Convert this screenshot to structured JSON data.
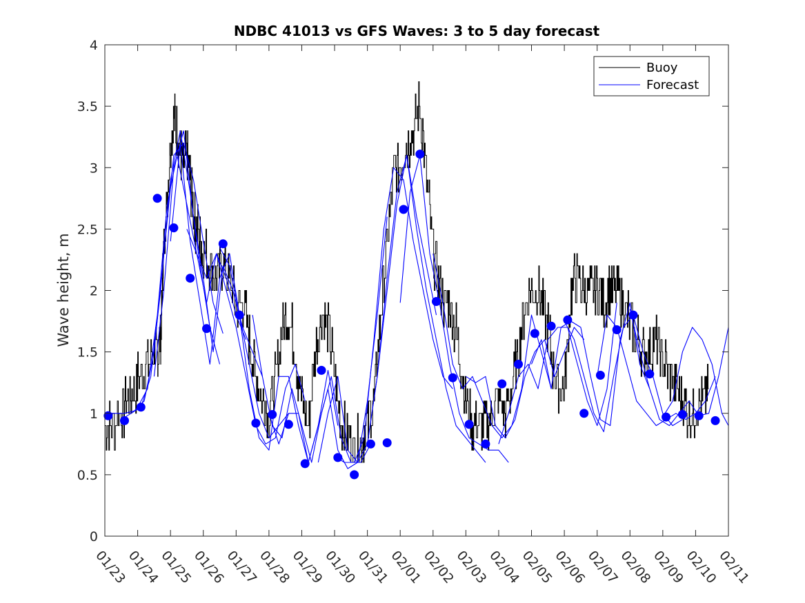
{
  "chart_data": {
    "type": "line",
    "title": "NDBC 41013 vs GFS Waves: 3 to 5 day forecast",
    "xlabel": "",
    "ylabel": "Wave height, m",
    "xlim": [
      0,
      19
    ],
    "ylim": [
      0,
      4
    ],
    "yticks": [
      0,
      0.5,
      1,
      1.5,
      2,
      2.5,
      3,
      3.5,
      4
    ],
    "ytick_labels": [
      "0",
      "0.5",
      "1",
      "1.5",
      "2",
      "2.5",
      "3",
      "3.5",
      "4"
    ],
    "xtick_labels": [
      "01/23",
      "01/24",
      "01/25",
      "01/26",
      "01/27",
      "01/28",
      "01/29",
      "01/30",
      "01/31",
      "02/01",
      "02/02",
      "02/03",
      "02/04",
      "02/05",
      "02/06",
      "02/07",
      "02/08",
      "02/09",
      "02/10",
      "02/11"
    ],
    "legend": {
      "position": "top-right",
      "entries": [
        "Buoy",
        "Forecast"
      ]
    },
    "colors": {
      "buoy": "#000000",
      "forecast": "#0000ff",
      "axes": "#262626"
    },
    "series": [
      {
        "name": "Buoy",
        "color": "#000000",
        "x": [
          0,
          0.2,
          0.5,
          0.7,
          0.9,
          1.1,
          1.3,
          1.5,
          1.6,
          1.7,
          1.75,
          1.8,
          1.9,
          2.0,
          2.1,
          2.2,
          2.3,
          2.4,
          2.5,
          2.6,
          2.7,
          2.8,
          2.9,
          3.0,
          3.2,
          3.4,
          3.6,
          3.8,
          4.0,
          4.2,
          4.4,
          4.6,
          4.8,
          5.0,
          5.2,
          5.4,
          5.6,
          5.8,
          6.0,
          6.2,
          6.4,
          6.6,
          6.8,
          7.0,
          7.2,
          7.4,
          7.6,
          7.8,
          8.0,
          8.2,
          8.4,
          8.6,
          8.8,
          9.0,
          9.2,
          9.4,
          9.6,
          9.8,
          10.0,
          10.2,
          10.4,
          10.6,
          10.8,
          11.0,
          11.2,
          11.4,
          11.6,
          11.8,
          12.0,
          12.2,
          12.4,
          12.6,
          12.8,
          13.0,
          13.2,
          13.4,
          13.6,
          13.8,
          14.0,
          14.2,
          14.4,
          14.6,
          14.8,
          15.0,
          15.2,
          15.4,
          15.6,
          15.8,
          16.0,
          16.2,
          16.4,
          16.6,
          16.8,
          17.0,
          17.2,
          17.4,
          17.6,
          17.8,
          18.0,
          18.2,
          18.4
        ],
        "y": [
          0.85,
          0.9,
          1.0,
          1.1,
          1.2,
          1.3,
          1.4,
          1.5,
          1.5,
          1.6,
          2.0,
          2.4,
          2.8,
          3.2,
          3.4,
          3.3,
          3.1,
          3.0,
          3.1,
          2.9,
          2.6,
          2.5,
          2.4,
          2.3,
          2.2,
          2.1,
          2.2,
          2.1,
          1.9,
          1.9,
          1.6,
          1.3,
          1.1,
          1.0,
          1.3,
          1.7,
          1.8,
          1.5,
          1.1,
          0.9,
          1.5,
          1.8,
          1.7,
          1.3,
          0.9,
          0.8,
          0.7,
          0.8,
          0.9,
          1.1,
          1.8,
          2.4,
          3.0,
          3.0,
          3.2,
          3.3,
          3.5,
          2.9,
          2.3,
          2.0,
          1.9,
          1.8,
          1.5,
          1.1,
          0.9,
          0.85,
          0.9,
          1.0,
          1.1,
          1.0,
          1.2,
          1.5,
          1.9,
          2.0,
          2.0,
          1.8,
          1.5,
          1.2,
          1.2,
          2.0,
          2.1,
          2.0,
          2.0,
          2.0,
          1.9,
          2.0,
          2.0,
          1.9,
          1.7,
          1.6,
          1.5,
          1.5,
          1.6,
          1.4,
          1.3,
          1.2,
          1.1,
          1.0,
          1.05,
          1.1,
          1.2
        ]
      }
    ],
    "forecast_runs": [
      {
        "x": [
          0,
          0.3,
          0.6,
          0.9,
          1.2,
          1.5,
          1.8,
          2.1,
          2.4,
          2.7,
          3.0,
          3.3,
          3.6
        ],
        "y": [
          1.0,
          1.0,
          1.0,
          1.02,
          1.1,
          1.5,
          2.3,
          3.1,
          3.2,
          2.9,
          2.4,
          1.9,
          1.65
        ]
      },
      {
        "x": [
          0.5,
          0.8,
          1.1,
          1.4,
          1.7,
          2.0,
          2.3,
          2.6,
          2.9,
          3.2,
          3.5
        ],
        "y": [
          0.95,
          1.0,
          1.05,
          1.3,
          2.0,
          2.9,
          3.3,
          2.8,
          2.2,
          1.7,
          1.4
        ]
      },
      {
        "x": [
          1.0,
          1.3,
          1.6,
          1.9,
          2.2,
          2.5,
          2.8,
          3.1,
          3.4,
          3.7,
          4.0,
          4.3
        ],
        "y": [
          1.05,
          1.2,
          1.8,
          2.7,
          3.1,
          2.7,
          2.3,
          2.1,
          2.3,
          2.1,
          1.8,
          1.6
        ]
      },
      {
        "x": [
          1.5,
          1.8,
          2.1,
          2.4,
          2.7,
          3.0,
          3.3,
          3.6,
          3.9,
          4.2,
          4.5,
          4.8
        ],
        "y": [
          1.3,
          2.0,
          3.0,
          3.3,
          2.6,
          2.1,
          1.5,
          2.2,
          2.0,
          1.7,
          1.5,
          1.3
        ]
      },
      {
        "x": [
          2.0,
          2.3,
          2.6,
          2.9,
          3.2,
          3.5,
          3.8,
          4.1,
          4.4,
          4.7,
          5.0,
          5.3,
          5.6
        ],
        "y": [
          2.4,
          3.2,
          2.4,
          1.9,
          1.4,
          2.1,
          2.3,
          1.8,
          1.4,
          1.0,
          0.8,
          0.9,
          1.0
        ]
      },
      {
        "x": [
          2.5,
          2.8,
          3.1,
          3.4,
          3.7,
          4.0,
          4.3,
          4.6,
          4.9,
          5.2,
          5.5,
          5.8,
          6.1
        ],
        "y": [
          2.5,
          2.3,
          1.9,
          2.3,
          2.0,
          1.7,
          1.3,
          0.9,
          0.75,
          0.8,
          1.2,
          1.4,
          1.1
        ]
      },
      {
        "x": [
          3.5,
          3.8,
          4.1,
          4.4,
          4.7,
          5.0,
          5.3,
          5.6,
          5.9,
          6.2,
          6.5,
          6.8,
          7.1
        ],
        "y": [
          2.35,
          2.2,
          1.8,
          1.2,
          0.8,
          0.7,
          1.3,
          1.3,
          0.9,
          0.6,
          0.9,
          1.35,
          0.9
        ]
      },
      {
        "x": [
          4.5,
          4.8,
          5.1,
          5.4,
          5.7,
          6.0,
          6.3,
          6.6,
          6.9,
          7.2,
          7.5,
          7.8,
          8.1
        ],
        "y": [
          1.8,
          1.3,
          0.9,
          0.8,
          1.2,
          0.9,
          0.6,
          1.0,
          1.3,
          0.8,
          0.6,
          0.6,
          0.75
        ]
      },
      {
        "x": [
          5.0,
          5.3,
          5.6,
          5.9,
          6.2,
          6.5,
          6.8,
          7.1,
          7.4,
          7.7,
          8.0,
          8.3,
          8.6
        ],
        "y": [
          1.0,
          0.75,
          1.0,
          1.0,
          0.6,
          0.9,
          1.2,
          0.7,
          0.55,
          0.6,
          1.1,
          1.8,
          2.6
        ]
      },
      {
        "x": [
          6.5,
          6.8,
          7.1,
          7.4,
          7.7,
          8.0,
          8.3,
          8.6,
          8.9,
          9.2,
          9.5,
          9.8,
          10.1
        ],
        "y": [
          0.6,
          1.0,
          1.3,
          0.7,
          0.6,
          0.75,
          1.3,
          2.1,
          2.8,
          3.1,
          2.6,
          2.2,
          1.8
        ]
      },
      {
        "x": [
          7.0,
          7.3,
          7.6,
          7.9,
          8.2,
          8.5,
          8.8,
          9.1,
          9.4,
          9.7,
          10.0,
          10.3,
          10.6
        ],
        "y": [
          0.65,
          0.6,
          0.6,
          0.8,
          1.6,
          2.5,
          3.0,
          2.9,
          2.4,
          2.0,
          1.6,
          1.3,
          1.2
        ]
      },
      {
        "x": [
          8.0,
          8.3,
          8.6,
          8.9,
          9.2,
          9.5,
          9.8,
          10.1,
          10.4,
          10.7,
          11.0,
          11.3,
          11.6
        ],
        "y": [
          0.75,
          1.3,
          2.0,
          2.7,
          3.1,
          2.5,
          2.0,
          1.6,
          1.2,
          0.9,
          0.8,
          0.7,
          0.6
        ]
      },
      {
        "x": [
          9.0,
          9.3,
          9.6,
          9.9,
          10.2,
          10.5,
          10.8,
          11.1,
          11.4,
          11.7,
          12.0,
          12.3
        ],
        "y": [
          1.9,
          2.8,
          3.1,
          2.3,
          1.9,
          1.4,
          1.0,
          0.8,
          0.75,
          0.7,
          0.7,
          0.6
        ]
      },
      {
        "x": [
          10.0,
          10.3,
          10.6,
          10.9,
          11.2,
          11.5,
          11.8,
          12.1,
          12.4,
          12.7,
          13.0,
          13.3,
          13.6
        ],
        "y": [
          2.3,
          1.9,
          1.4,
          1.2,
          1.3,
          1.1,
          0.9,
          0.8,
          0.9,
          1.2,
          1.8,
          1.5,
          1.2
        ]
      },
      {
        "x": [
          11.0,
          11.3,
          11.6,
          11.9,
          12.2,
          12.5,
          12.8,
          13.1,
          13.4,
          13.7,
          14.0,
          14.3,
          14.6
        ],
        "y": [
          1.3,
          1.25,
          1.3,
          0.9,
          0.8,
          0.95,
          1.3,
          1.5,
          1.6,
          1.3,
          1.5,
          1.7,
          1.6
        ]
      },
      {
        "x": [
          12.0,
          12.3,
          12.6,
          12.9,
          13.2,
          13.5,
          13.8,
          14.1,
          14.4,
          14.7,
          15.0,
          15.3,
          15.6
        ],
        "y": [
          0.75,
          1.0,
          1.3,
          1.4,
          1.2,
          1.6,
          1.7,
          1.7,
          1.4,
          1.1,
          0.9,
          1.2,
          1.9
        ]
      },
      {
        "x": [
          13.0,
          13.3,
          13.6,
          13.9,
          14.2,
          14.5,
          14.8,
          15.1,
          15.4,
          15.7,
          16.0,
          16.3,
          16.6
        ],
        "y": [
          1.4,
          1.6,
          1.2,
          1.7,
          1.75,
          1.7,
          1.3,
          0.95,
          0.9,
          1.6,
          1.9,
          1.4,
          1.2
        ]
      },
      {
        "x": [
          14.0,
          14.3,
          14.6,
          14.9,
          15.2,
          15.5,
          15.8,
          16.1,
          16.4,
          16.7,
          17.0,
          17.3,
          17.6
        ],
        "y": [
          1.75,
          1.6,
          1.3,
          1.0,
          0.85,
          1.3,
          1.7,
          1.8,
          1.5,
          1.3,
          1.0,
          0.9,
          0.95
        ]
      },
      {
        "x": [
          15.0,
          15.3,
          15.6,
          15.9,
          16.2,
          16.5,
          16.8,
          17.1,
          17.4,
          17.7,
          18.0,
          18.3,
          18.6
        ],
        "y": [
          1.3,
          1.8,
          1.7,
          1.4,
          1.1,
          1.0,
          0.9,
          0.95,
          1.0,
          0.95,
          1.0,
          1.1,
          1.3
        ]
      },
      {
        "x": [
          16.0,
          16.3,
          16.6,
          16.9,
          17.2,
          17.5,
          17.8,
          18.1,
          18.4,
          18.7,
          19.0
        ],
        "y": [
          1.85,
          1.5,
          1.2,
          0.95,
          0.9,
          1.0,
          1.1,
          0.98,
          1.0,
          1.3,
          1.7
        ]
      },
      {
        "x": [
          17.0,
          17.3,
          17.6,
          17.9,
          18.2,
          18.5,
          18.8,
          19.0
        ],
        "y": [
          0.97,
          1.1,
          1.5,
          1.7,
          1.6,
          1.4,
          1.0,
          0.9
        ]
      }
    ],
    "forecast_points": {
      "x": [
        0.1,
        0.6,
        1.1,
        1.6,
        2.1,
        2.6,
        3.1,
        3.6,
        4.1,
        4.6,
        5.1,
        5.6,
        6.1,
        6.6,
        7.1,
        7.6,
        8.1,
        8.6,
        9.1,
        9.6,
        10.1,
        10.6,
        11.1,
        11.6,
        12.1,
        12.6,
        13.1,
        13.6,
        14.1,
        14.6,
        15.1,
        15.6,
        16.1,
        16.6,
        17.1,
        17.6,
        18.1,
        18.6
      ],
      "y": [
        0.98,
        0.94,
        1.05,
        2.75,
        2.51,
        2.1,
        1.69,
        2.38,
        1.8,
        0.92,
        0.99,
        0.91,
        0.59,
        1.35,
        0.64,
        0.5,
        0.75,
        0.76,
        2.66,
        3.11,
        1.91,
        1.29,
        0.91,
        0.75,
        1.24,
        1.4,
        1.65,
        1.71,
        1.76,
        1.0,
        1.31,
        1.68,
        1.8,
        1.32,
        0.97,
        0.99,
        0.98,
        0.94
      ]
    }
  }
}
